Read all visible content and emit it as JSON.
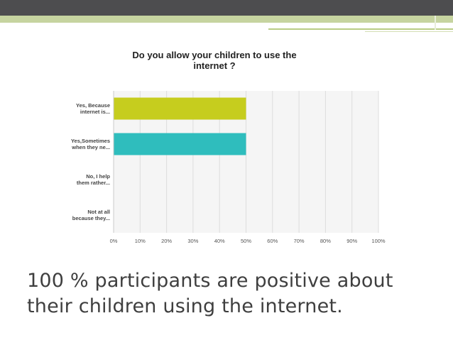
{
  "chart_data": {
    "type": "bar",
    "orientation": "horizontal",
    "title": "Do you allow your children to use the internet ?",
    "title_lines": [
      "Do you allow your children to use the",
      "internet ?"
    ],
    "categories": [
      [
        "Yes, Because",
        "internet is..."
      ],
      [
        "Yes,Sometimes",
        "when they ne..."
      ],
      [
        "No, I help",
        "them rather..."
      ],
      [
        "Not at all",
        "because they..."
      ]
    ],
    "values": [
      50,
      50,
      0,
      0
    ],
    "bar_colors": [
      "#c6cd1e",
      "#2fbdbd",
      "#c6cd1e",
      "#2fbdbd"
    ],
    "xlim": [
      0,
      100
    ],
    "x_ticks": [
      "0%",
      "10%",
      "20%",
      "30%",
      "40%",
      "50%",
      "60%",
      "70%",
      "80%",
      "90%",
      "100%"
    ],
    "grid": true,
    "xlabel": "",
    "ylabel": ""
  },
  "caption": {
    "line1": "100 % participants are positive about",
    "line2": "their children using the internet."
  },
  "colors": {
    "topbar": "#4d4d4f",
    "accent": "#c6d4a0",
    "plot_bg": "#f5f5f5",
    "grid": "#dddddd",
    "text": "#3f3f3f"
  }
}
